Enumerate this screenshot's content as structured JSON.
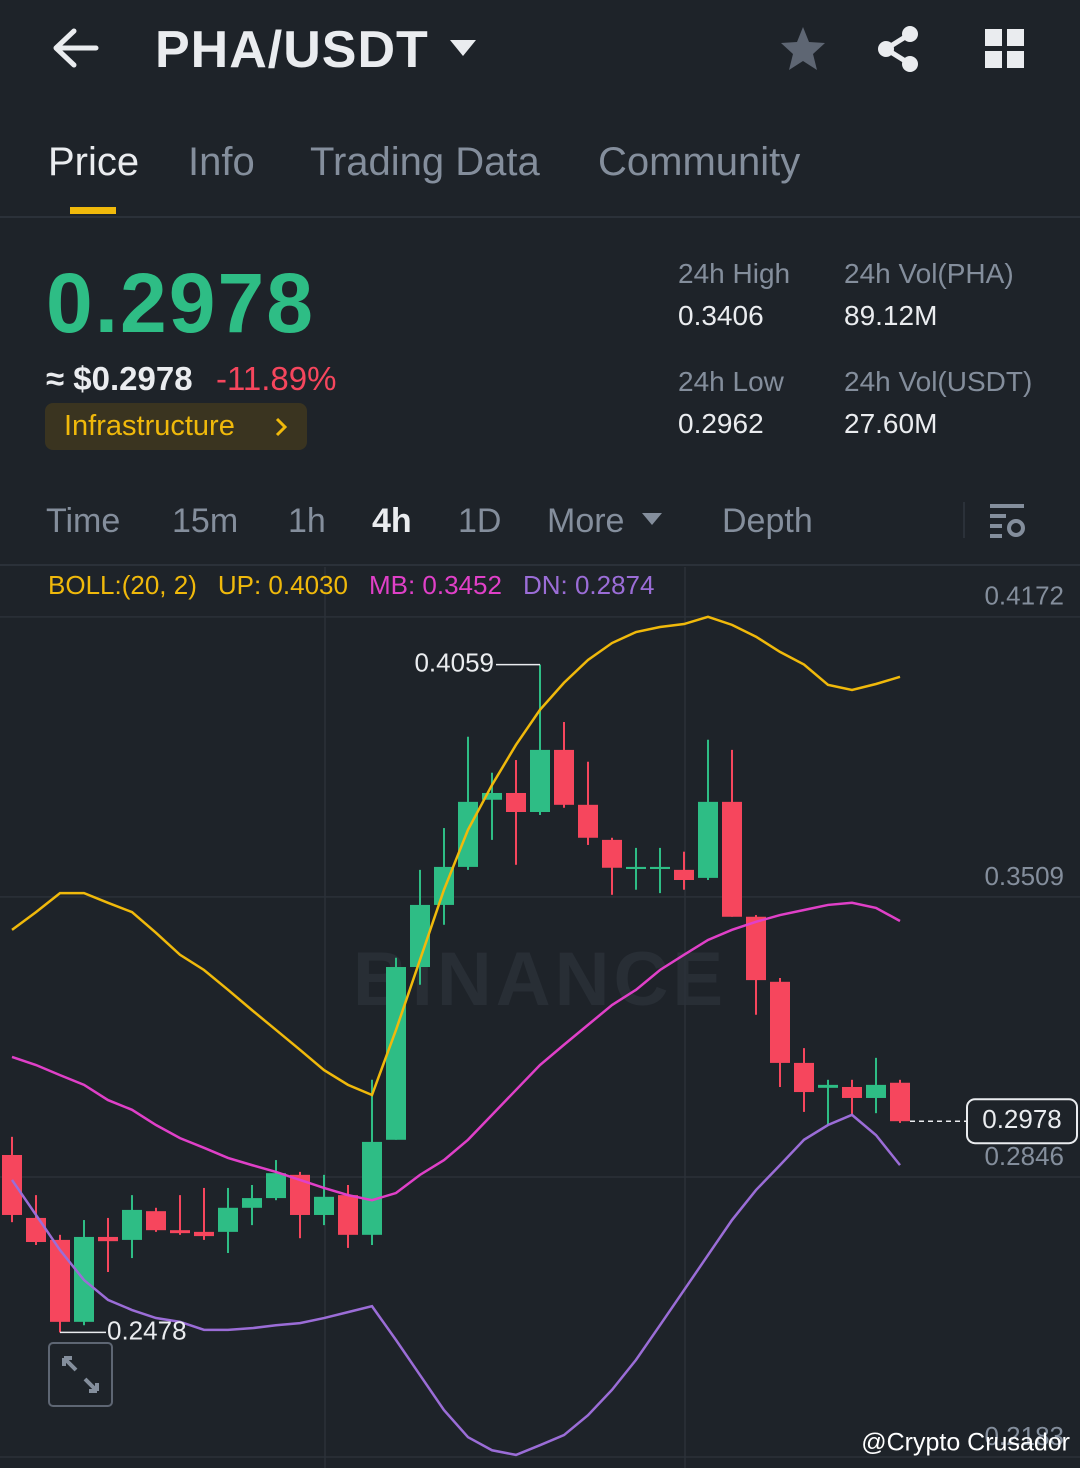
{
  "header": {
    "title": "PHA/USDT"
  },
  "tabs": [
    "Price",
    "Info",
    "Trading Data",
    "Community"
  ],
  "ticker": {
    "price": "0.2978",
    "usd_price": "≈ $0.2978",
    "change": "-11.89%",
    "sector": "Infrastructure"
  },
  "stats": [
    {
      "label": "24h High",
      "value": "0.3406"
    },
    {
      "label": "24h Vol(PHA)",
      "value": "89.12M"
    },
    {
      "label": "24h Low",
      "value": "0.2962"
    },
    {
      "label": "24h Vol(USDT)",
      "value": "27.60M"
    }
  ],
  "intervals": [
    "Time",
    "15m",
    "1h",
    "4h",
    "1D",
    "More",
    "Depth"
  ],
  "chart_data": {
    "type": "candlestick",
    "indicator": "BOLL:(20, 2)",
    "watermark": "BINANCE",
    "credit": "@Crypto Crusador",
    "up_color": "#2ebd85",
    "down_color": "#f6465d",
    "ylim": [
      0.2157,
      0.429
    ],
    "yticks": [
      0.4172,
      0.3509,
      0.2846,
      0.2183
    ],
    "grid": true,
    "last_price": 0.2978,
    "high_label": "0.4059",
    "low_label": "0.2478",
    "candles": {
      "open": [
        0.2898,
        0.2749,
        0.2697,
        0.2503,
        0.2704,
        0.2697,
        0.2765,
        0.272,
        0.2716,
        0.2716,
        0.2773,
        0.2796,
        0.2851,
        0.2756,
        0.2803,
        0.2709,
        0.2934,
        0.3343,
        0.349,
        0.358,
        0.3739,
        0.3755,
        0.371,
        0.3857,
        0.3727,
        0.3644,
        0.3575,
        0.3575,
        0.3573,
        0.3554,
        0.3734,
        0.3462,
        0.3308,
        0.3116,
        0.3057,
        0.3059,
        0.3033,
        0.3069
      ],
      "high": [
        0.2941,
        0.2803,
        0.2709,
        0.2744,
        0.2749,
        0.2803,
        0.2773,
        0.2803,
        0.282,
        0.282,
        0.2827,
        0.2886,
        0.2858,
        0.2851,
        0.2827,
        0.3076,
        0.3365,
        0.3573,
        0.3672,
        0.3888,
        0.3803,
        0.3833,
        0.4059,
        0.3923,
        0.3829,
        0.3649,
        0.3625,
        0.3625,
        0.3616,
        0.3881,
        0.3857,
        0.3466,
        0.3317,
        0.3151,
        0.3076,
        0.3076,
        0.3128,
        0.3076
      ],
      "low": [
        0.2739,
        0.2685,
        0.2478,
        0.2495,
        0.2621,
        0.2654,
        0.2716,
        0.2709,
        0.2697,
        0.2666,
        0.2732,
        0.2791,
        0.2701,
        0.2732,
        0.2678,
        0.2685,
        0.2934,
        0.3301,
        0.3443,
        0.3573,
        0.3644,
        0.3585,
        0.3703,
        0.372,
        0.3632,
        0.3514,
        0.3526,
        0.3518,
        0.3526,
        0.3549,
        0.3462,
        0.323,
        0.3059,
        0.3,
        0.2969,
        0.2993,
        0.2997,
        0.2974
      ],
      "close": [
        0.2756,
        0.2692,
        0.2503,
        0.2704,
        0.2694,
        0.2768,
        0.272,
        0.2713,
        0.2706,
        0.2773,
        0.2796,
        0.2855,
        0.2756,
        0.2799,
        0.2709,
        0.2929,
        0.3343,
        0.349,
        0.358,
        0.3734,
        0.3755,
        0.371,
        0.3857,
        0.3727,
        0.3649,
        0.3578,
        0.358,
        0.358,
        0.3549,
        0.3734,
        0.3462,
        0.3312,
        0.3116,
        0.3047,
        0.3064,
        0.3033,
        0.3064,
        0.2978
      ]
    },
    "series": [
      {
        "name": "UP: 0.4030",
        "color": "#f0b90b",
        "values": [
          0.3431,
          0.3473,
          0.3518,
          0.3518,
          0.3495,
          0.3473,
          0.3424,
          0.3372,
          0.3336,
          0.3289,
          0.3241,
          0.3194,
          0.3147,
          0.3099,
          0.3064,
          0.304,
          0.3194,
          0.336,
          0.3526,
          0.3668,
          0.3774,
          0.3869,
          0.3952,
          0.4016,
          0.407,
          0.411,
          0.4136,
          0.4148,
          0.4155,
          0.4172,
          0.4153,
          0.4125,
          0.4089,
          0.4059,
          0.4011,
          0.3999,
          0.4013,
          0.403
        ]
      },
      {
        "name": "MB: 0.3452",
        "color": "#e040c8",
        "values": [
          0.313,
          0.3111,
          0.3087,
          0.3064,
          0.3028,
          0.3005,
          0.2969,
          0.2938,
          0.2915,
          0.2891,
          0.2874,
          0.2858,
          0.2839,
          0.282,
          0.2803,
          0.2791,
          0.2808,
          0.2851,
          0.2886,
          0.2934,
          0.2993,
          0.3052,
          0.3111,
          0.3159,
          0.3206,
          0.3253,
          0.3289,
          0.3336,
          0.3372,
          0.3407,
          0.3431,
          0.345,
          0.3466,
          0.3478,
          0.349,
          0.3495,
          0.3483,
          0.3452
        ]
      },
      {
        "name": "DN: 0.2874",
        "color": "#9b6dd7",
        "values": [
          0.2839,
          0.2756,
          0.2673,
          0.2602,
          0.2555,
          0.2531,
          0.2512,
          0.2503,
          0.2484,
          0.2484,
          0.2488,
          0.2495,
          0.25,
          0.2512,
          0.2526,
          0.254,
          0.246,
          0.2377,
          0.2294,
          0.223,
          0.2199,
          0.2188,
          0.2211,
          0.2235,
          0.2282,
          0.2342,
          0.2413,
          0.2495,
          0.2578,
          0.2661,
          0.2744,
          0.2815,
          0.2874,
          0.2934,
          0.2969,
          0.2993,
          0.2945,
          0.2874
        ]
      }
    ]
  }
}
